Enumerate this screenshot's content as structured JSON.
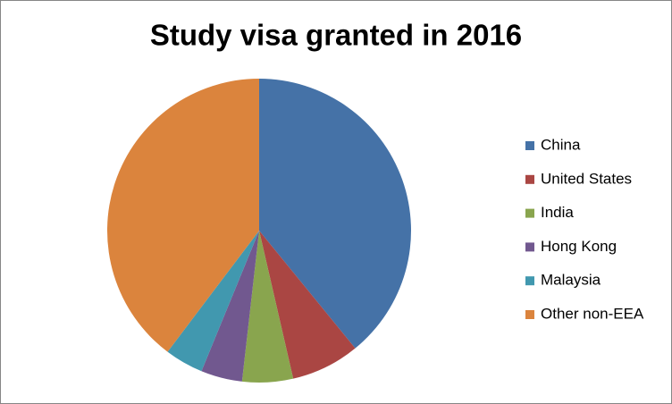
{
  "chart_data": {
    "type": "pie",
    "title": "Study visa granted in 2016",
    "categories": [
      "China",
      "United States",
      "India",
      "Hong Kong",
      "Malaysia",
      "Other non-EEA"
    ],
    "values": [
      39.1,
      7.3,
      5.4,
      4.4,
      4.1,
      39.7
    ],
    "colors": [
      "#4572a7",
      "#aa4643",
      "#89a54e",
      "#71588f",
      "#4198af",
      "#db843d"
    ],
    "legend": "right"
  }
}
